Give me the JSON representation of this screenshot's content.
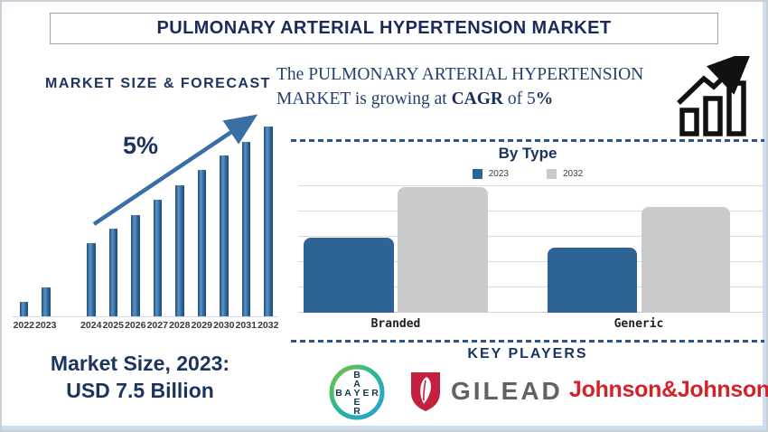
{
  "header": {
    "title": "PULMONARY ARTERIAL HYPERTENSION MARKET"
  },
  "left_panel": {
    "heading": "MARKET SIZE & FORECAST",
    "cagr_annotation": "5%",
    "market_size_line1": "Market Size, 2023:",
    "market_size_line2": "USD 7.5 Billion"
  },
  "growth_statement": {
    "text_before_cagr": "The PULMONARY ARTERIAL HYPERTENSION MARKET is growing at ",
    "cagr": "CAGR",
    "text_after_cagr": " of 5",
    "percent": "%"
  },
  "key_players": {
    "title": "KEY PLAYERS",
    "companies": [
      "Bayer",
      "GILEAD",
      "Johnson&Johnson"
    ]
  },
  "icons": {
    "growth_chart_icon": "growth-bars-with-rising-arrow",
    "trend_arrow_icon": "diagonal-up-arrow"
  },
  "colors": {
    "navy": "#1c3460",
    "title_navy": "#1b2a5a",
    "bar_blue": "#2e6395",
    "bar_gray": "#c9cacc",
    "dash_navy": "#2b5586",
    "arrow_blue": "#3b6ea5",
    "jnj_red": "#d2232a",
    "gilead_red": "#c5203f",
    "gilead_gray": "#5f6368",
    "bayer_navy": "#10384f"
  },
  "chart_data": [
    {
      "type": "bar",
      "title": "MARKET SIZE & FORECAST",
      "categories": [
        "2022",
        "2023",
        "2024",
        "2025",
        "2026",
        "2027",
        "2028",
        "2029",
        "2030",
        "2031",
        "2032"
      ],
      "values": [
        16,
        32,
        81,
        97,
        112,
        129,
        145,
        162,
        178,
        193,
        210
      ],
      "units": "relative bar height (no y-axis shown)",
      "annotation": "5% CAGR trend arrow",
      "known_point": "2023 = USD 7.5 Billion",
      "xlabel": "",
      "ylabel": "",
      "grid": false
    },
    {
      "type": "bar",
      "title": "By Type",
      "categories": [
        "Branded",
        "Generic"
      ],
      "series": [
        {
          "name": "2023",
          "color": "#2e6395",
          "values": [
            83,
            72
          ]
        },
        {
          "name": "2032",
          "color": "#c9cacc",
          "values": [
            139,
            117
          ]
        }
      ],
      "units": "relative bar height (no y-axis shown)",
      "legend_position": "top",
      "grid": true
    }
  ]
}
